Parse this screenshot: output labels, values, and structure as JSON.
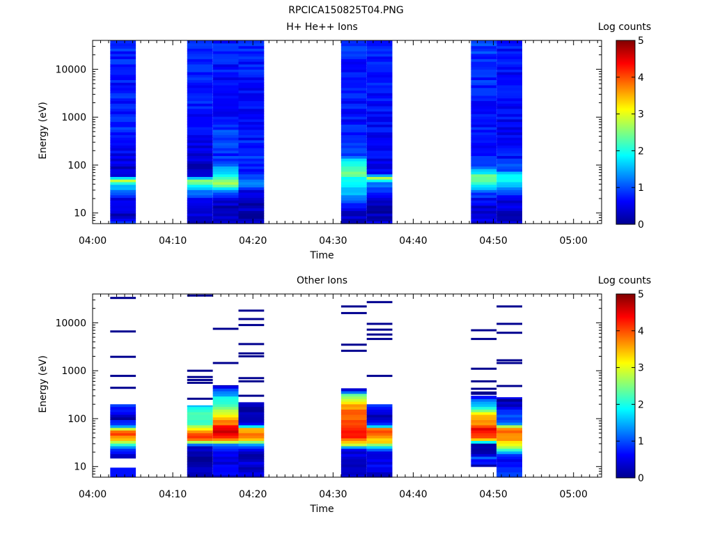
{
  "figure_title": "RPCICA150825T04.PNG",
  "chart_data": [
    {
      "type": "heatmap",
      "title": "H+ He++ Ions",
      "xlabel": "Time",
      "ylabel": "Energy (eV)",
      "x_ticks": [
        "04:00",
        "04:10",
        "04:20",
        "04:30",
        "04:40",
        "04:50",
        "05:00"
      ],
      "xlim_minutes": [
        0,
        63.5
      ],
      "ylim": [
        6,
        40000
      ],
      "yscale": "log",
      "y_ticks": [
        {
          "value": 10,
          "label": "10"
        },
        {
          "value": 100,
          "label": "100"
        },
        {
          "value": 1000,
          "label": "1000"
        },
        {
          "value": 10000,
          "label": "10000"
        }
      ],
      "colorbar": {
        "label": "Log counts",
        "min": 0,
        "max": 5,
        "ticks": [
          "0",
          "1",
          "2",
          "3",
          "4",
          "5"
        ]
      },
      "columns": [
        {
          "start_min": 2.2,
          "end_min": 5.4,
          "profile": [
            [
              6,
              0.9
            ],
            [
              9,
              0.2
            ],
            [
              13,
              0.5
            ],
            [
              20,
              0.6
            ],
            [
              40,
              1.7
            ],
            [
              48,
              3.0
            ],
            [
              60,
              0.3
            ],
            [
              100,
              0.4
            ],
            [
              500,
              0.8
            ],
            [
              5000,
              0.7
            ],
            [
              40000,
              0.8
            ]
          ]
        },
        {
          "start_min": 11.8,
          "end_min": 15.0,
          "profile": [
            [
              6,
              0.4
            ],
            [
              11,
              0.3
            ],
            [
              20,
              0.6
            ],
            [
              38,
              1.8
            ],
            [
              48,
              2.6
            ],
            [
              60,
              0.4
            ],
            [
              100,
              0.3
            ],
            [
              300,
              0.6
            ],
            [
              2000,
              0.7
            ],
            [
              40000,
              0.8
            ]
          ]
        },
        {
          "start_min": 15.0,
          "end_min": 18.2,
          "profile": [
            [
              6,
              0.5
            ],
            [
              10,
              0.1
            ],
            [
              15,
              0.3
            ],
            [
              25,
              0.8
            ],
            [
              40,
              2.8
            ],
            [
              60,
              2.2
            ],
            [
              80,
              1.5
            ],
            [
              150,
              0.8
            ],
            [
              400,
              1.0
            ],
            [
              1000,
              0.7
            ],
            [
              5000,
              0.6
            ],
            [
              40000,
              0.8
            ]
          ]
        },
        {
          "start_min": 18.2,
          "end_min": 21.4,
          "profile": [
            [
              6,
              0.3
            ],
            [
              10,
              0.2
            ],
            [
              20,
              0.3
            ],
            [
              30,
              0.6
            ],
            [
              40,
              1.5
            ],
            [
              55,
              1.0
            ],
            [
              70,
              0.6
            ],
            [
              150,
              0.8
            ],
            [
              1000,
              0.6
            ],
            [
              40000,
              0.8
            ]
          ]
        },
        {
          "start_min": 31.0,
          "end_min": 34.2,
          "profile": [
            [
              6,
              0.4
            ],
            [
              10,
              0.3
            ],
            [
              15,
              0.6
            ],
            [
              25,
              1.4
            ],
            [
              40,
              1.8
            ],
            [
              70,
              2.3
            ],
            [
              120,
              1.8
            ],
            [
              180,
              0.8
            ],
            [
              1000,
              0.7
            ],
            [
              40000,
              0.8
            ]
          ]
        },
        {
          "start_min": 34.2,
          "end_min": 37.4,
          "profile": [
            [
              6,
              0.5
            ],
            [
              10,
              0.2
            ],
            [
              20,
              0.3
            ],
            [
              30,
              0.8
            ],
            [
              45,
              1.3
            ],
            [
              55,
              2.8
            ],
            [
              65,
              0.5
            ],
            [
              200,
              0.6
            ],
            [
              1000,
              0.6
            ],
            [
              40000,
              0.8
            ]
          ]
        },
        {
          "start_min": 47.2,
          "end_min": 50.4,
          "profile": [
            [
              6,
              0.5
            ],
            [
              10,
              0.3
            ],
            [
              20,
              0.6
            ],
            [
              30,
              1.2
            ],
            [
              45,
              2.2
            ],
            [
              60,
              2.3
            ],
            [
              80,
              1.5
            ],
            [
              120,
              0.8
            ],
            [
              500,
              0.7
            ],
            [
              40000,
              0.9
            ]
          ]
        },
        {
          "start_min": 50.4,
          "end_min": 53.6,
          "profile": [
            [
              6,
              0.3
            ],
            [
              12,
              0.4
            ],
            [
              20,
              0.5
            ],
            [
              30,
              1.3
            ],
            [
              45,
              1.7
            ],
            [
              60,
              1.8
            ],
            [
              80,
              1.0
            ],
            [
              200,
              0.6
            ],
            [
              1000,
              0.6
            ],
            [
              40000,
              0.7
            ]
          ]
        }
      ]
    },
    {
      "type": "heatmap",
      "title": "Other Ions",
      "xlabel": "Time",
      "ylabel": "Energy (eV)",
      "x_ticks": [
        "04:00",
        "04:10",
        "04:20",
        "04:30",
        "04:40",
        "04:50",
        "05:00"
      ],
      "xlim_minutes": [
        0,
        63.5
      ],
      "ylim": [
        6,
        40000
      ],
      "yscale": "log",
      "y_ticks": [
        {
          "value": 10,
          "label": "10"
        },
        {
          "value": 100,
          "label": "100"
        },
        {
          "value": 1000,
          "label": "1000"
        },
        {
          "value": 10000,
          "label": "10000"
        }
      ],
      "colorbar": {
        "label": "Log counts",
        "min": 0,
        "max": 5,
        "ticks": [
          "0",
          "1",
          "2",
          "3",
          "4",
          "5"
        ]
      },
      "columns": [
        {
          "start_min": 2.2,
          "end_min": 5.4,
          "fill_top": 200,
          "fill_bottom": 15,
          "profile": [
            [
              15,
              0.3
            ],
            [
              20,
              0.6
            ],
            [
              25,
              1.2
            ],
            [
              30,
              2.5
            ],
            [
              35,
              3.2
            ],
            [
              40,
              3.6
            ],
            [
              50,
              4.5
            ],
            [
              60,
              3.0
            ],
            [
              70,
              1.5
            ],
            [
              100,
              0.2
            ],
            [
              150,
              0.8
            ],
            [
              200,
              0.9
            ]
          ],
          "extra_blocks": [
            [
              6,
              9.5,
              0.7
            ]
          ],
          "lines": [
            440,
            780,
            1950,
            6600,
            33000
          ]
        },
        {
          "start_min": 11.8,
          "end_min": 15.0,
          "fill_top": 190,
          "fill_bottom": 6,
          "profile": [
            [
              6,
              0.2
            ],
            [
              15,
              0.1
            ],
            [
              25,
              0.2
            ],
            [
              30,
              1.3
            ],
            [
              35,
              3.8
            ],
            [
              45,
              4.3
            ],
            [
              60,
              3.5
            ],
            [
              80,
              2.0
            ],
            [
              120,
              2.3
            ],
            [
              190,
              1.6
            ]
          ],
          "lines": [
            260,
            560,
            640,
            740,
            1000,
            37000
          ]
        },
        {
          "start_min": 15.0,
          "end_min": 18.2,
          "fill_top": 500,
          "fill_bottom": 6,
          "profile": [
            [
              6,
              0.5
            ],
            [
              20,
              0.4
            ],
            [
              30,
              1.5
            ],
            [
              35,
              3.5
            ],
            [
              45,
              4.5
            ],
            [
              60,
              4.6
            ],
            [
              80,
              3.8
            ],
            [
              120,
              3.3
            ],
            [
              180,
              2.5
            ],
            [
              250,
              2.0
            ],
            [
              330,
              1.4
            ],
            [
              500,
              0.4
            ]
          ],
          "lines": [
            1450,
            7500
          ]
        },
        {
          "start_min": 18.2,
          "end_min": 21.4,
          "fill_top": 220,
          "fill_bottom": 6,
          "profile": [
            [
              6,
              0.4
            ],
            [
              20,
              0.3
            ],
            [
              30,
              1.4
            ],
            [
              35,
              3.4
            ],
            [
              45,
              3.9
            ],
            [
              60,
              3.6
            ],
            [
              80,
              0.2
            ],
            [
              120,
              0.3
            ],
            [
              160,
              0.2
            ],
            [
              220,
              0.3
            ]
          ],
          "lines": [
            300,
            600,
            700,
            2000,
            2300,
            3600,
            9000,
            12000,
            18000
          ]
        },
        {
          "start_min": 31.0,
          "end_min": 34.2,
          "fill_top": 430,
          "fill_bottom": 6,
          "profile": [
            [
              6,
              0.3
            ],
            [
              20,
              0.5
            ],
            [
              25,
              1.0
            ],
            [
              30,
              3.2
            ],
            [
              40,
              4.1
            ],
            [
              60,
              4.4
            ],
            [
              100,
              4.0
            ],
            [
              150,
              3.8
            ],
            [
              200,
              3.5
            ],
            [
              250,
              3.1
            ],
            [
              300,
              2.7
            ],
            [
              360,
              1.2
            ],
            [
              430,
              0.3
            ]
          ],
          "lines": [
            2600,
            3500,
            16000,
            22000
          ]
        },
        {
          "start_min": 34.2,
          "end_min": 37.4,
          "fill_top": 200,
          "fill_bottom": 6,
          "profile": [
            [
              6,
              0.1
            ],
            [
              10,
              0.6
            ],
            [
              20,
              0.5
            ],
            [
              25,
              1.3
            ],
            [
              30,
              3.1
            ],
            [
              40,
              3.5
            ],
            [
              50,
              3.8
            ],
            [
              60,
              4.0
            ],
            [
              70,
              1.5
            ],
            [
              90,
              0.3
            ],
            [
              120,
              0.2
            ],
            [
              160,
              0.5
            ],
            [
              200,
              1.0
            ]
          ],
          "lines": [
            780,
            4600,
            5700,
            7200,
            9500,
            27000
          ]
        },
        {
          "start_min": 47.2,
          "end_min": 50.4,
          "fill_top": 300,
          "fill_bottom": 10,
          "profile": [
            [
              10,
              0.2
            ],
            [
              15,
              1.0
            ],
            [
              20,
              0.2
            ],
            [
              30,
              0.3
            ],
            [
              35,
              3.0
            ],
            [
              40,
              3.7
            ],
            [
              50,
              4.4
            ],
            [
              60,
              4.6
            ],
            [
              80,
              3.8
            ],
            [
              120,
              3.2
            ],
            [
              160,
              2.3
            ],
            [
              220,
              1.3
            ],
            [
              300,
              0.5
            ]
          ],
          "lines": [
            330,
            350,
            420,
            600,
            1100,
            4600,
            7000
          ]
        },
        {
          "start_min": 50.4,
          "end_min": 53.6,
          "fill_top": 280,
          "fill_bottom": 6,
          "profile": [
            [
              6,
              0.8
            ],
            [
              15,
              0.7
            ],
            [
              20,
              1.3
            ],
            [
              25,
              2.6
            ],
            [
              30,
              3.2
            ],
            [
              40,
              3.7
            ],
            [
              50,
              3.8
            ],
            [
              60,
              4.0
            ],
            [
              80,
              1.2
            ],
            [
              120,
              0.9
            ],
            [
              180,
              0.5
            ],
            [
              240,
              0.2
            ],
            [
              280,
              0.4
            ]
          ],
          "lines": [
            480,
            1450,
            1650,
            6200,
            9500,
            22000
          ]
        }
      ]
    }
  ]
}
